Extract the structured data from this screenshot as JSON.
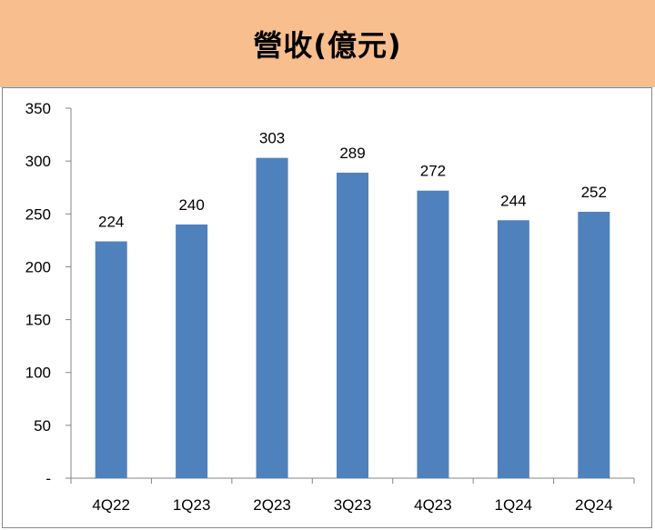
{
  "title": "營收(億元)",
  "chart_data": {
    "type": "bar",
    "title": "營收(億元)",
    "categories": [
      "4Q22",
      "1Q23",
      "2Q23",
      "3Q23",
      "4Q23",
      "1Q24",
      "2Q24"
    ],
    "values": [
      224,
      240,
      303,
      289,
      272,
      244,
      252
    ],
    "y_ticks": [
      "-",
      "50",
      "100",
      "150",
      "200",
      "250",
      "300",
      "350"
    ],
    "ylim": [
      0,
      350
    ],
    "grid": false,
    "bar_color": "#4f81bd"
  }
}
